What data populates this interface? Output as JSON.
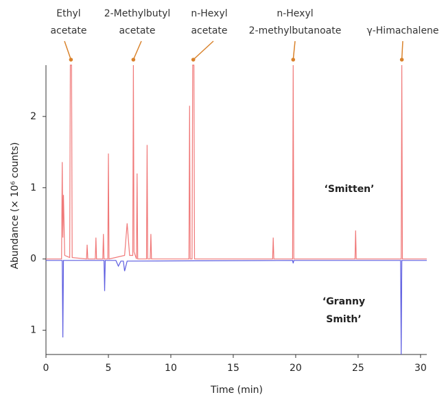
{
  "chart_data": {
    "type": "line",
    "xlabel": "Time (min)",
    "ylabel": "Abundance (× 10⁶ counts)",
    "xlim": [
      0,
      30.5
    ],
    "xticks": [
      0,
      5,
      10,
      15,
      20,
      25,
      30
    ],
    "ylim": [
      -1.34,
      2.72
    ],
    "yticks": [
      {
        "value": -1,
        "label": "1"
      },
      0,
      1,
      2
    ],
    "annotation_color": "#d9822b",
    "annotations": [
      {
        "lines": [
          "Ethyl",
          "acetate"
        ],
        "x": 2.0
      },
      {
        "lines": [
          "2-Methylbutyl",
          "acetate"
        ],
        "x": 7.0
      },
      {
        "lines": [
          "n-Hexyl",
          "acetate"
        ],
        "x": 11.8
      },
      {
        "lines": [
          "n-Hexyl",
          "2-methylbutanoate"
        ],
        "x": 19.8
      },
      {
        "lines": [
          "γ-Himachalene"
        ],
        "x": 28.5
      }
    ],
    "series": [
      {
        "name": "‘Smitten’",
        "color": "#f07878",
        "x": [
          0,
          1.25,
          1.3,
          1.35,
          1.4,
          1.5,
          1.9,
          1.95,
          2.05,
          2.1,
          3.25,
          3.3,
          3.35,
          3.95,
          4.0,
          4.05,
          4.55,
          4.6,
          4.65,
          4.95,
          5.0,
          5.05,
          6.3,
          6.5,
          6.7,
          6.95,
          7.0,
          7.05,
          7.25,
          7.3,
          7.35,
          8.05,
          8.1,
          8.15,
          8.35,
          8.4,
          8.45,
          11.45,
          11.5,
          11.55,
          11.7,
          11.75,
          11.85,
          11.9,
          18.15,
          18.2,
          18.25,
          19.75,
          19.8,
          19.85,
          24.75,
          24.8,
          24.85,
          28.45,
          28.5,
          28.55,
          30.5
        ],
        "values": [
          0,
          0,
          1.36,
          0.3,
          0.9,
          0.05,
          0.02,
          2.72,
          2.72,
          0.02,
          0,
          0.2,
          0,
          0,
          0.3,
          0,
          0,
          0.35,
          0,
          0,
          1.48,
          0,
          0.05,
          0.5,
          0.05,
          0.05,
          2.72,
          0.1,
          0,
          1.2,
          0,
          0,
          1.6,
          0,
          0,
          0.35,
          0,
          0,
          2.15,
          0,
          0,
          2.72,
          2.72,
          0,
          0,
          0.3,
          0,
          0,
          2.72,
          0,
          0,
          0.4,
          0,
          0,
          2.72,
          0,
          0
        ]
      },
      {
        "name": "‘Granny Smith’",
        "color": "#5c5ce0",
        "x": [
          0,
          1.3,
          1.35,
          1.4,
          4.65,
          4.7,
          4.75,
          5.6,
          5.8,
          6.0,
          6.2,
          6.3,
          6.5,
          19.75,
          19.8,
          19.85,
          28.4,
          28.45,
          28.5,
          30.5
        ],
        "values": [
          -0.02,
          -0.02,
          -1.1,
          -0.02,
          -0.02,
          -0.45,
          -0.02,
          -0.02,
          -0.1,
          -0.03,
          -0.03,
          -0.17,
          -0.03,
          -0.02,
          -0.06,
          -0.02,
          -0.02,
          -1.34,
          -0.02,
          -0.02
        ]
      }
    ]
  }
}
